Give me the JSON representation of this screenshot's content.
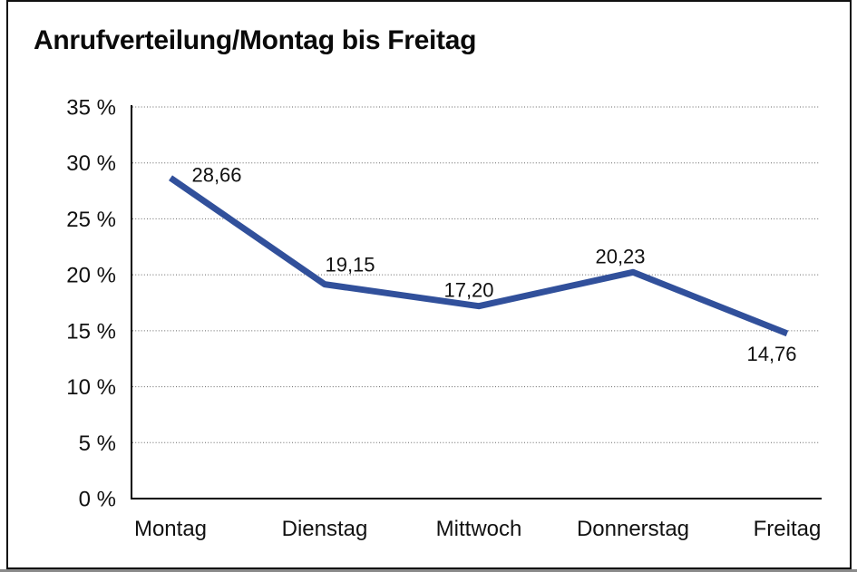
{
  "chart": {
    "title": "Anrufverteilung/Montag bis Freitag"
  },
  "chart_data": {
    "type": "line",
    "title": "Anrufverteilung/Montag bis Freitag",
    "categories": [
      "Montag",
      "Dienstag",
      "Mittwoch",
      "Donnerstag",
      "Freitag"
    ],
    "values": [
      28.66,
      19.15,
      17.2,
      20.23,
      14.76
    ],
    "point_labels": [
      "28,66",
      "19,15",
      "17,20",
      "20,23",
      "14,76"
    ],
    "y_tick_labels": [
      "0 %",
      "5 %",
      "10 %",
      "15 %",
      "20 %",
      "25 %",
      "30 %",
      "35 %"
    ],
    "y_tick_values": [
      0,
      5,
      10,
      15,
      20,
      25,
      30,
      35
    ],
    "ylim": [
      0,
      35
    ],
    "xlabel": "",
    "ylabel": "",
    "legend": "none",
    "grid": "horizontal-dotted",
    "markers": "none",
    "colors": {
      "line": "#31509B",
      "grid": "#666666",
      "axis": "#000000",
      "text": "#111111",
      "background": "#FFFFFF"
    }
  }
}
